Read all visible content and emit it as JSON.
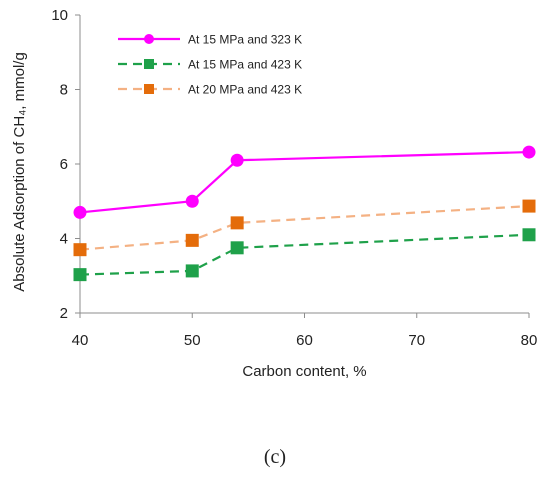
{
  "chart_data": {
    "type": "line",
    "xlabel": "Carbon content, %",
    "ylabel": "Absolute Adsorption of CH₄, mmol/g",
    "xlim": [
      40,
      80
    ],
    "ylim": [
      2,
      10
    ],
    "xticks": [
      40,
      50,
      60,
      70,
      80
    ],
    "yticks": [
      2,
      4,
      6,
      8,
      10
    ],
    "grid": false,
    "legend_position": "top-left",
    "series": [
      {
        "name": "At 15 MPa and 323 K",
        "x": [
          40,
          50,
          54,
          80
        ],
        "y": [
          4.7,
          5.0,
          6.1,
          6.32
        ],
        "color": "#ff00ff",
        "marker": "circle",
        "dash": "solid"
      },
      {
        "name": "At 15 MPa and 423 K",
        "x": [
          40,
          50,
          54,
          80
        ],
        "y": [
          3.03,
          3.13,
          3.75,
          4.1
        ],
        "color": "#1fa14a",
        "marker": "square",
        "dash": "dashed"
      },
      {
        "name": "At 20 MPa and 423 K",
        "x": [
          40,
          50,
          54,
          80
        ],
        "y": [
          3.7,
          3.95,
          4.42,
          4.87
        ],
        "color": "#f4b183",
        "marker_fill": "#e46c0a",
        "marker": "square",
        "dash": "dashed"
      }
    ]
  },
  "panel_label": "(c)"
}
